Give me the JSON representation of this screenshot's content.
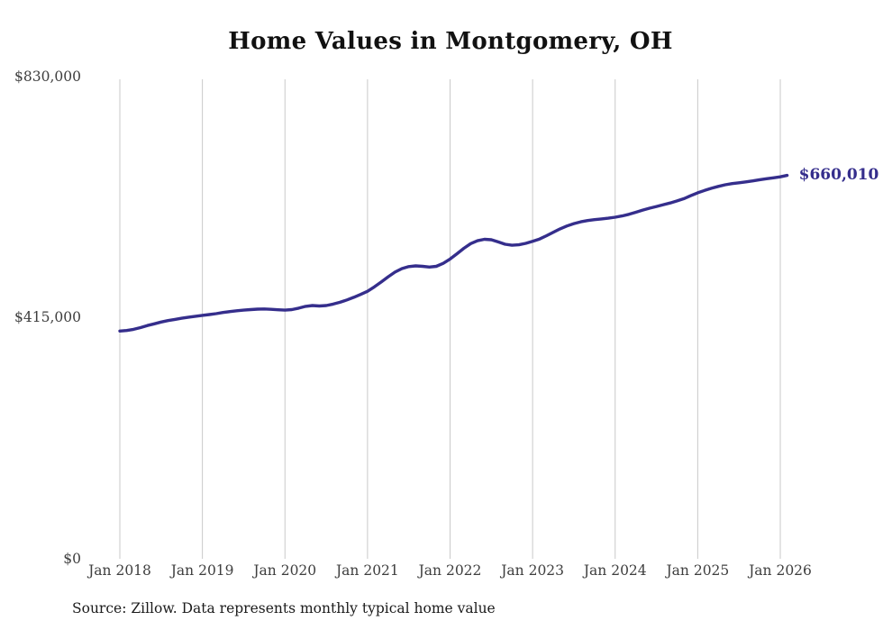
{
  "title": "Home Values in Montgomery, OH",
  "end_label": "$660,010",
  "source_note": "Source: Zillow. Data represents monthly typical home value",
  "colors": {
    "line": "#352e8c",
    "grid": "#c9c9c9",
    "axis_text": "#3e3e3e",
    "title_text": "#111111",
    "background": "#ffffff"
  },
  "y_axis": {
    "ticks": [
      {
        "label": "$830,000",
        "value": 830000
      },
      {
        "label": "$415,000",
        "value": 415000
      },
      {
        "label": "$0",
        "value": 0
      }
    ]
  },
  "x_axis": {
    "ticks": [
      "Jan 2018",
      "Jan 2019",
      "Jan 2020",
      "Jan 2021",
      "Jan 2022",
      "Jan 2023",
      "Jan 2024",
      "Jan 2025",
      "Jan 2026"
    ]
  },
  "chart_data": {
    "type": "line",
    "title": "Home Values in Montgomery, OH",
    "x_start": "2018-01",
    "x_end": "2026-02",
    "x_interval": "monthly",
    "unit": "USD",
    "ylim": [
      0,
      830000
    ],
    "grid": "vertical-only",
    "legend": "none",
    "yticklabels": [
      "$0",
      "$415,000",
      "$830,000"
    ],
    "xticklabels": [
      "Jan 2018",
      "Jan 2019",
      "Jan 2020",
      "Jan 2021",
      "Jan 2022",
      "Jan 2023",
      "Jan 2024",
      "Jan 2025",
      "Jan 2026"
    ],
    "final_value_label": "$660,010",
    "series": [
      {
        "name": "Monthly typical home value",
        "values": [
          392000,
          393000,
          395000,
          398000,
          401500,
          404500,
          407500,
          410000,
          412000,
          414000,
          416000,
          417500,
          419000,
          420500,
          422000,
          424000,
          425500,
          427000,
          428000,
          429000,
          429800,
          430000,
          429400,
          428600,
          428000,
          429000,
          431500,
          434500,
          436000,
          435200,
          436000,
          438500,
          441500,
          445500,
          450000,
          455000,
          460500,
          468000,
          476500,
          485500,
          493500,
          499500,
          503000,
          504200,
          503500,
          502200,
          503500,
          508500,
          516000,
          525000,
          534500,
          542500,
          547500,
          550000,
          549200,
          545500,
          541500,
          539800,
          540500,
          543000,
          546500,
          550500,
          556000,
          562000,
          568000,
          573000,
          577000,
          580000,
          582200,
          583800,
          585000,
          586200,
          588000,
          590200,
          593000,
          596500,
          600200,
          603500,
          606500,
          609500,
          612500,
          616000,
          620000,
          625000,
          630000,
          634000,
          637800,
          641000,
          643800,
          645800,
          647200,
          648800,
          650500,
          652500,
          654200,
          655800,
          657500,
          660010
        ]
      }
    ]
  }
}
